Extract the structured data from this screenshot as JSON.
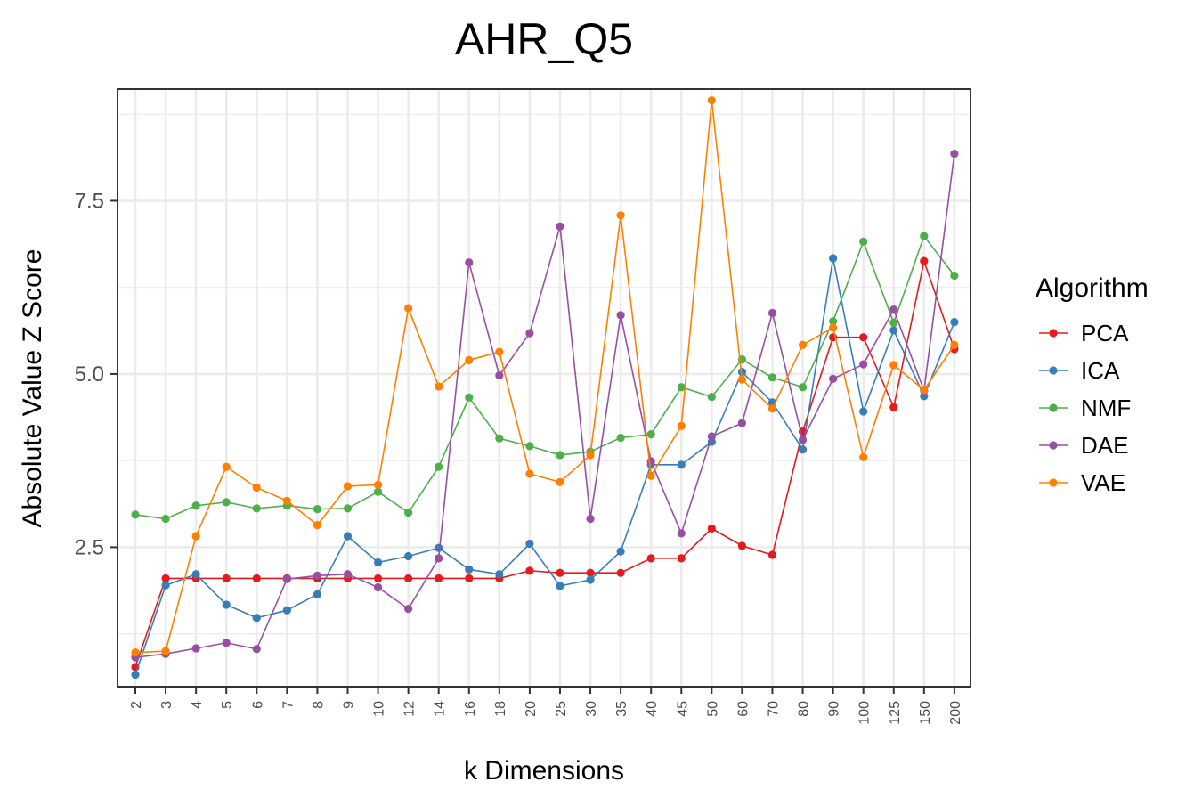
{
  "chart_data": {
    "type": "line",
    "title": "AHR_Q5",
    "xlabel": "k Dimensions",
    "ylabel": "Absolute Value Z Score",
    "categories": [
      "2",
      "3",
      "4",
      "5",
      "6",
      "7",
      "8",
      "9",
      "10",
      "12",
      "14",
      "16",
      "18",
      "20",
      "25",
      "30",
      "35",
      "40",
      "45",
      "50",
      "60",
      "70",
      "80",
      "90",
      "100",
      "125",
      "150",
      "200"
    ],
    "y_ticks": [
      2.5,
      5.0,
      7.5
    ],
    "y_tick_labels": [
      "2.5",
      "5.0",
      "7.5"
    ],
    "ylim": [
      0.5,
      9.1
    ],
    "grid": true,
    "legend": {
      "title": "Algorithm",
      "position": "right"
    },
    "series": [
      {
        "name": "PCA",
        "color": "#e41a1c",
        "values": [
          0.77,
          2.05,
          2.05,
          2.05,
          2.05,
          2.05,
          2.05,
          2.05,
          2.05,
          2.05,
          2.05,
          2.05,
          2.05,
          2.16,
          2.13,
          2.13,
          2.13,
          2.34,
          2.34,
          2.77,
          2.52,
          2.39,
          4.17,
          5.53,
          5.53,
          4.52,
          6.63,
          5.36
        ]
      },
      {
        "name": "ICA",
        "color": "#377eb8",
        "values": [
          0.66,
          1.95,
          2.11,
          1.67,
          1.48,
          1.59,
          1.82,
          2.66,
          2.28,
          2.37,
          2.49,
          2.18,
          2.11,
          2.55,
          1.94,
          2.03,
          2.44,
          3.69,
          3.69,
          4.02,
          5.03,
          4.59,
          3.91,
          6.67,
          4.46,
          5.63,
          4.68,
          5.75
        ]
      },
      {
        "name": "NMF",
        "color": "#4daf4a",
        "values": [
          2.97,
          2.91,
          3.1,
          3.15,
          3.06,
          3.1,
          3.05,
          3.06,
          3.3,
          3.0,
          3.66,
          4.66,
          4.07,
          3.96,
          3.83,
          3.88,
          4.08,
          4.13,
          4.81,
          4.67,
          5.21,
          4.95,
          4.81,
          5.76,
          6.91,
          5.74,
          6.99,
          6.42
        ]
      },
      {
        "name": "DAE",
        "color": "#984ea3",
        "values": [
          0.91,
          0.96,
          1.04,
          1.12,
          1.03,
          2.04,
          2.09,
          2.11,
          1.92,
          1.61,
          2.34,
          6.61,
          4.98,
          5.59,
          7.13,
          2.91,
          5.85,
          3.74,
          2.7,
          4.1,
          4.29,
          5.88,
          4.05,
          4.93,
          5.14,
          5.93,
          4.76,
          8.18
        ]
      },
      {
        "name": "VAE",
        "color": "#ff7f00",
        "values": [
          0.98,
          1.0,
          2.66,
          3.66,
          3.36,
          3.17,
          2.82,
          3.38,
          3.4,
          5.95,
          4.82,
          5.2,
          5.32,
          3.56,
          3.44,
          3.83,
          7.29,
          3.53,
          4.25,
          8.95,
          4.92,
          4.5,
          5.42,
          5.67,
          3.8,
          5.13,
          4.77,
          5.42
        ]
      }
    ]
  }
}
